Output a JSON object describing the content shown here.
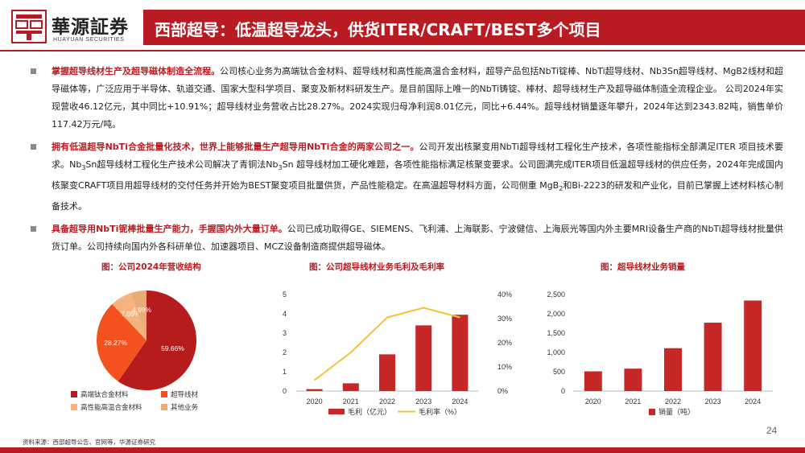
{
  "header": {
    "logo_cn": "華源証券",
    "logo_en": "HUAYUAN SECURITIES",
    "title": "西部超导：低温超导龙头，供货ITER/CRAFT/BEST多个项目"
  },
  "bullets": [
    {
      "highlight": "掌握超导线材生产及超导磁体制造全流程。",
      "text": "公司核心业务为高端钛合金材料、超导线材和高性能高温合金材料，超导产品包括NbTi锭棒、NbTi超导线材、Nb3Sn超导线材、MgB2线材和超导磁体等，广泛应用于半导体、轨道交通、国家大型科学项目、聚变及新材料研发生产。是目前国际上唯一的NbTi铸锭、棒材、超导线材生产及超导磁体制造全流程企业。 公司2024年实现营收46.12亿元，其中同比+10.91%；超导线材业务营收占比28.27%。2024实现归母净利润8.01亿元，同比+6.44%。超导线材销量逐年攀升，2024年达到2343.82吨，销售单价117.42万元/吨。"
    },
    {
      "highlight": "拥有低温超导NbTi合金批量化技术，世界上能够批量生产超导用NbTi合金的两家公司之一。",
      "text_a": "公司开发出核聚变用NbTi超导线材工程化生产技术，各项性能指标全部满足ITER 项目技术要求。Nb",
      "text_a_sub": "3",
      "text_b": "Sn超导线材工程化生产技术公司解决了青铜法Nb",
      "text_b_sub": "3",
      "text_c": "Sn 超导线材加工硬化难题，各项性能指标满足核聚变要求。公司圆满完成ITER项目低温超导线材的供应任务，2024年完成国内核聚变CRAFT项目用超导线材的交付任务并开始为BEST聚变项目批量供货，产品性能稳定。在高温超导材料方面，公司侧重 MgB",
      "text_c_sub": "2",
      "text_d": "和Bi-2223的研发和产业化，目前已掌握上述材料核心制备技术。"
    },
    {
      "highlight": "具备超导用NbTi铌棒批量生产能力，手握国内外大量订单。",
      "text": "公司已成功取得GE、SIEMENS、飞利浦、上海联影、宁波健信、上海辰光等国内外主要MRI设备生产商的NbTi超导线材批量供货订单。公司持续向国内外各科研单位、加速器项目、MCZ设备制造商提供超导磁体。"
    }
  ],
  "chart_data": [
    {
      "type": "pie",
      "title": "图：公司2024年营收结构",
      "labels": [
        "高端钛合金材料",
        "超导线材",
        "高性能高温合金材料",
        "其他业务"
      ],
      "values": [
        59.66,
        28.27,
        7.09,
        4.99
      ],
      "value_labels": [
        "59.66%",
        "28.27%",
        "7.09%",
        "4.99%"
      ],
      "colors": [
        "#b71c1c",
        "#f4511e",
        "#f7b27e",
        "#e9ab77"
      ],
      "legend_position": "bottom"
    },
    {
      "type": "bar+line",
      "title": "图：公司超导线材业务毛利及毛利率",
      "categories": [
        "2020",
        "2021",
        "2022",
        "2023",
        "2024"
      ],
      "series": [
        {
          "name": "毛利（亿元）",
          "type": "bar",
          "axis": "left",
          "color": "#c62828",
          "values": [
            0.1,
            0.4,
            1.9,
            3.4,
            3.95
          ]
        },
        {
          "name": "毛利率（%）",
          "type": "line",
          "axis": "right",
          "color": "#f6c13a",
          "values": [
            4.5,
            16,
            30.5,
            34.5,
            30.5
          ]
        }
      ],
      "ylim_left": [
        0,
        5
      ],
      "yticks_left": [
        "0",
        "1",
        "2",
        "3",
        "4",
        "5"
      ],
      "ylim_right": [
        0,
        40
      ],
      "yticks_right": [
        "0%",
        "10%",
        "20%",
        "30%",
        "40%"
      ],
      "legend_position": "bottom"
    },
    {
      "type": "bar",
      "title": "图：超导线材业务销量",
      "categories": [
        "2020",
        "2021",
        "2022",
        "2023",
        "2024"
      ],
      "series": [
        {
          "name": "销量（吨）",
          "color": "#c62828",
          "values": [
            510,
            580,
            1110,
            1770,
            2343.82
          ]
        }
      ],
      "ylim": [
        0,
        2500
      ],
      "yticks": [
        "0",
        "500",
        "1,000",
        "1,500",
        "2,000",
        "2,500"
      ],
      "legend_position": "bottom"
    }
  ],
  "footer": {
    "source": "资料来源：西部超导公告、官网等，华源证券研究",
    "page": "24"
  }
}
